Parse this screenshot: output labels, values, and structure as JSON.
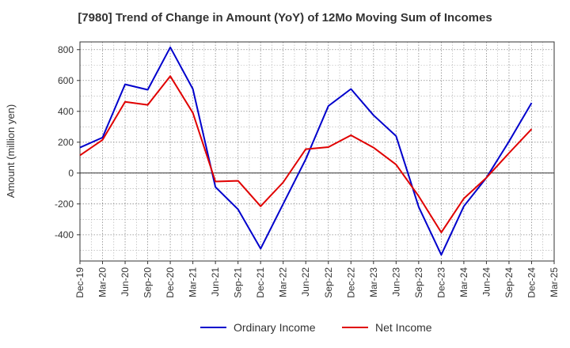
{
  "chart_data": {
    "type": "line",
    "title": "[7980]  Trend of Change in Amount (YoY) of 12Mo Moving Sum of Incomes",
    "xlabel": "",
    "ylabel": "Amount (million yen)",
    "categories": [
      "Dec-19",
      "Mar-20",
      "Jun-20",
      "Sep-20",
      "Dec-20",
      "Mar-21",
      "Jun-21",
      "Sep-21",
      "Dec-21",
      "Mar-22",
      "Jun-22",
      "Sep-22",
      "Dec-22",
      "Mar-23",
      "Jun-23",
      "Sep-23",
      "Dec-23",
      "Mar-24",
      "Jun-24",
      "Sep-24",
      "Dec-24",
      "Mar-25"
    ],
    "ylim": [
      -570,
      850
    ],
    "yticks": [
      -400,
      -200,
      0,
      200,
      400,
      600,
      800
    ],
    "grid": true,
    "legend_position": "bottom-center",
    "series": [
      {
        "name": "Ordinary Income",
        "color": "#0000cc",
        "values": [
          165,
          230,
          575,
          540,
          815,
          545,
          -90,
          -235,
          -490,
          -200,
          90,
          435,
          545,
          375,
          240,
          -220,
          -530,
          -215,
          -30,
          205,
          455,
          null
        ]
      },
      {
        "name": "Net Income",
        "color": "#e00000",
        "values": [
          115,
          215,
          462,
          442,
          628,
          390,
          -55,
          -50,
          -215,
          -60,
          155,
          168,
          245,
          165,
          55,
          -150,
          -385,
          -165,
          -30,
          130,
          285,
          null
        ]
      }
    ]
  }
}
